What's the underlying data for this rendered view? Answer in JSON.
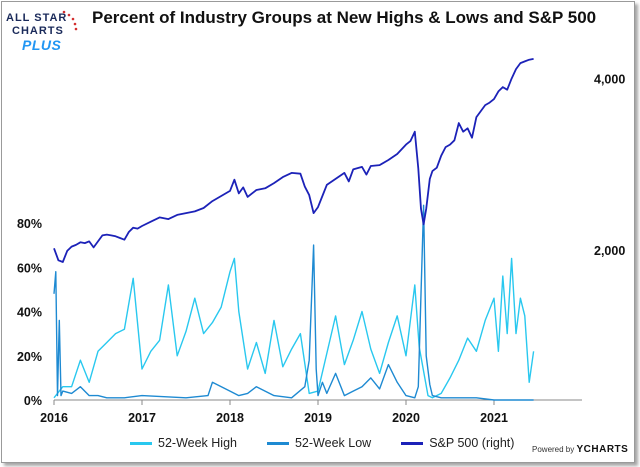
{
  "title": "Percent of Industry Groups at New Highs & Lows and S&P 500",
  "logo": {
    "line1": "ALL STAR",
    "line2": "CHARTS",
    "plus": "PLUS"
  },
  "powered_by": {
    "prefix": "Powered by",
    "brand": "YCHARTS"
  },
  "chart_data": {
    "type": "line",
    "title": "Percent of Industry Groups at New Highs & Lows and S&P 500",
    "x_range": [
      2016.0,
      2022.0
    ],
    "x_ticks": [
      {
        "value": 2016,
        "label": "2016"
      },
      {
        "value": 2017,
        "label": "2017"
      },
      {
        "value": 2018,
        "label": "2018"
      },
      {
        "value": 2019,
        "label": "2019"
      },
      {
        "value": 2020,
        "label": "2020"
      },
      {
        "value": 2021,
        "label": "2021"
      }
    ],
    "left_axis": {
      "range": [
        0,
        80
      ],
      "ticks": [
        {
          "value": 0,
          "label": "0%"
        },
        {
          "value": 20,
          "label": "20%"
        },
        {
          "value": 40,
          "label": "40%"
        },
        {
          "value": 60,
          "label": "60%"
        },
        {
          "value": 80,
          "label": "80%"
        }
      ]
    },
    "right_axis": {
      "range": [
        250,
        4450
      ],
      "ticks": [
        {
          "value": 2000,
          "label": "2,000"
        },
        {
          "value": 4000,
          "label": "4,000"
        }
      ]
    },
    "series": [
      {
        "name": "52-Week High",
        "axis": "left",
        "color": "#29c8ef",
        "x": [
          2016.0,
          2016.1,
          2016.2,
          2016.3,
          2016.4,
          2016.5,
          2016.6,
          2016.7,
          2016.8,
          2016.9,
          2017.0,
          2017.1,
          2017.2,
          2017.3,
          2017.4,
          2017.5,
          2017.6,
          2017.7,
          2017.8,
          2017.9,
          2018.0,
          2018.05,
          2018.1,
          2018.2,
          2018.3,
          2018.4,
          2018.5,
          2018.6,
          2018.7,
          2018.8,
          2018.9,
          2019.0,
          2019.1,
          2019.2,
          2019.3,
          2019.4,
          2019.5,
          2019.6,
          2019.7,
          2019.8,
          2019.9,
          2020.0,
          2020.1,
          2020.15,
          2020.25,
          2020.3,
          2020.4,
          2020.5,
          2020.6,
          2020.7,
          2020.8,
          2020.9,
          2021.0,
          2021.05,
          2021.1,
          2021.15,
          2021.2,
          2021.25,
          2021.3,
          2021.35,
          2021.4,
          2021.45
        ],
        "values": [
          1,
          6,
          6,
          18,
          8,
          22,
          26,
          30,
          32,
          55,
          14,
          22,
          27,
          52,
          20,
          31,
          46,
          30,
          35,
          42,
          58,
          64,
          40,
          14,
          26,
          12,
          36,
          15,
          23,
          30,
          3,
          4,
          21,
          38,
          16,
          27,
          40,
          23,
          12,
          26,
          38,
          20,
          52,
          24,
          2,
          1,
          3,
          10,
          18,
          28,
          22,
          36,
          46,
          22,
          56,
          30,
          64,
          30,
          46,
          38,
          8,
          22
        ]
      },
      {
        "name": "52-Week Low",
        "axis": "left",
        "color": "#1e8ad2",
        "x": [
          2016.0,
          2016.02,
          2016.04,
          2016.06,
          2016.08,
          2016.1,
          2016.2,
          2016.3,
          2016.4,
          2016.5,
          2016.6,
          2016.8,
          2017.0,
          2017.5,
          2017.75,
          2017.8,
          2018.0,
          2018.1,
          2018.2,
          2018.3,
          2018.5,
          2018.7,
          2018.85,
          2018.9,
          2018.95,
          2018.98,
          2019.0,
          2019.05,
          2019.1,
          2019.2,
          2019.3,
          2019.4,
          2019.5,
          2019.6,
          2019.7,
          2019.8,
          2019.9,
          2020.0,
          2020.1,
          2020.14,
          2020.17,
          2020.2,
          2020.23,
          2020.27,
          2020.3,
          2020.4,
          2020.6,
          2020.8,
          2021.0,
          2021.2,
          2021.4,
          2021.45
        ],
        "values": [
          48,
          58,
          2,
          36,
          2,
          4,
          3,
          6,
          2,
          2,
          1,
          1,
          2,
          1,
          2,
          8,
          4,
          2,
          3,
          6,
          2,
          1,
          6,
          18,
          70,
          14,
          2,
          8,
          3,
          12,
          2,
          4,
          6,
          10,
          5,
          16,
          8,
          2,
          1,
          6,
          48,
          88,
          20,
          7,
          2,
          1,
          1,
          1,
          0,
          0,
          0,
          0
        ]
      },
      {
        "name": "S&P 500 (right)",
        "axis": "right",
        "color": "#1c22b8",
        "x": [
          2016.0,
          2016.05,
          2016.1,
          2016.15,
          2016.2,
          2016.25,
          2016.3,
          2016.35,
          2016.4,
          2016.45,
          2016.5,
          2016.55,
          2016.6,
          2016.65,
          2016.7,
          2016.75,
          2016.8,
          2016.85,
          2016.9,
          2016.95,
          2017.0,
          2017.1,
          2017.2,
          2017.3,
          2017.4,
          2017.5,
          2017.6,
          2017.7,
          2017.8,
          2017.9,
          2018.0,
          2018.05,
          2018.1,
          2018.15,
          2018.2,
          2018.25,
          2018.3,
          2018.4,
          2018.5,
          2018.6,
          2018.7,
          2018.8,
          2018.85,
          2018.9,
          2018.95,
          2019.0,
          2019.05,
          2019.1,
          2019.2,
          2019.3,
          2019.35,
          2019.4,
          2019.5,
          2019.55,
          2019.6,
          2019.7,
          2019.8,
          2019.9,
          2020.0,
          2020.05,
          2020.1,
          2020.14,
          2020.17,
          2020.2,
          2020.23,
          2020.27,
          2020.3,
          2020.35,
          2020.4,
          2020.45,
          2020.5,
          2020.55,
          2020.6,
          2020.65,
          2020.7,
          2020.75,
          2020.8,
          2020.85,
          2020.9,
          2020.95,
          2021.0,
          2021.05,
          2021.1,
          2021.15,
          2021.2,
          2021.25,
          2021.3,
          2021.35,
          2021.4,
          2021.45
        ],
        "values": [
          2020,
          1880,
          1860,
          1990,
          2040,
          2060,
          2090,
          2080,
          2100,
          2030,
          2100,
          2170,
          2180,
          2170,
          2160,
          2140,
          2120,
          2210,
          2260,
          2250,
          2280,
          2330,
          2380,
          2360,
          2410,
          2430,
          2450,
          2490,
          2570,
          2630,
          2690,
          2820,
          2660,
          2730,
          2620,
          2660,
          2700,
          2720,
          2780,
          2850,
          2900,
          2890,
          2740,
          2640,
          2430,
          2500,
          2630,
          2760,
          2830,
          2900,
          2800,
          2940,
          2970,
          2880,
          2980,
          2990,
          3050,
          3120,
          3230,
          3270,
          3380,
          2950,
          2480,
          2300,
          2480,
          2830,
          2920,
          2960,
          3100,
          3200,
          3230,
          3280,
          3480,
          3380,
          3420,
          3310,
          3550,
          3620,
          3690,
          3720,
          3760,
          3850,
          3900,
          3870,
          4000,
          4110,
          4180,
          4200,
          4220,
          4230
        ]
      }
    ],
    "legend": "bottom"
  }
}
